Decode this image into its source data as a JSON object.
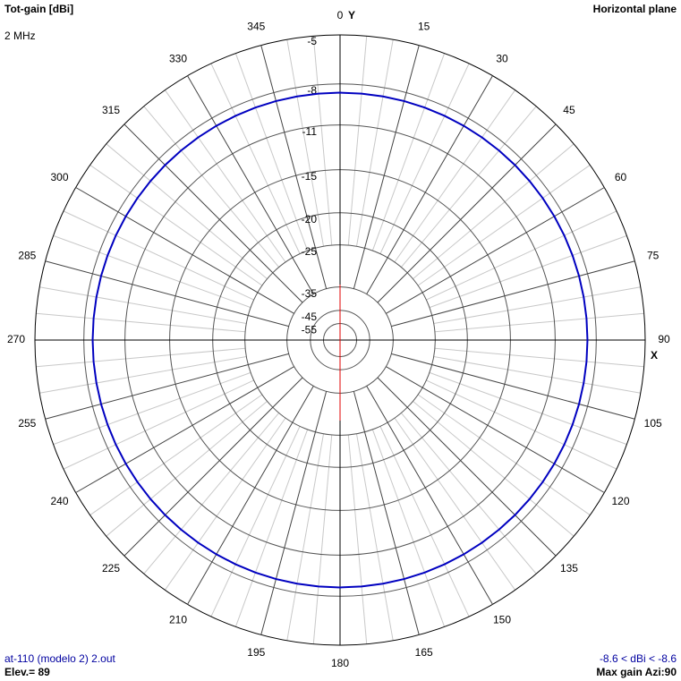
{
  "chart_data": {
    "type": "polar",
    "title": "Tot-gain [dBi]",
    "subtitle": "2 MHz",
    "plane": "Horizontal plane",
    "y_axis_label": "Y",
    "x_axis_label": "X",
    "file_label": "at-110 (modelo 2) 2.out",
    "elevation_label": "Elev.= 89",
    "range_label": "-8.6 < dBi < -8.6",
    "max_gain_label": "Max gain Azi:90",
    "radial_scale": "arrl-log",
    "rlim": [
      -55,
      -5
    ],
    "rticks": [
      -5,
      -8,
      -11,
      -15,
      -20,
      -25,
      -35,
      -45,
      -55
    ],
    "thetaticks": [
      0,
      15,
      30,
      45,
      60,
      75,
      90,
      105,
      120,
      135,
      150,
      165,
      180,
      195,
      210,
      225,
      240,
      255,
      270,
      285,
      300,
      315,
      330,
      345
    ],
    "theta_direction": "clockwise",
    "theta_zero": "top",
    "series": [
      {
        "color": "#0000c0",
        "x": [
          0,
          5,
          10,
          15,
          20,
          25,
          30,
          35,
          40,
          45,
          50,
          55,
          60,
          65,
          70,
          75,
          80,
          85,
          90,
          95,
          100,
          105,
          110,
          115,
          120,
          125,
          130,
          135,
          140,
          145,
          150,
          155,
          160,
          165,
          170,
          175,
          180,
          185,
          190,
          195,
          200,
          205,
          210,
          215,
          220,
          225,
          230,
          235,
          240,
          245,
          250,
          255,
          260,
          265,
          270,
          275,
          280,
          285,
          290,
          295,
          300,
          305,
          310,
          315,
          320,
          325,
          330,
          335,
          340,
          345,
          350,
          355,
          360
        ],
        "values": [
          -8.6,
          -8.6,
          -8.6,
          -8.6,
          -8.6,
          -8.6,
          -8.6,
          -8.6,
          -8.6,
          -8.6,
          -8.6,
          -8.6,
          -8.6,
          -8.6,
          -8.6,
          -8.6,
          -8.6,
          -8.6,
          -8.6,
          -8.6,
          -8.6,
          -8.6,
          -8.6,
          -8.6,
          -8.6,
          -8.6,
          -8.6,
          -8.6,
          -8.6,
          -8.6,
          -8.6,
          -8.6,
          -8.6,
          -8.6,
          -8.6,
          -8.6,
          -8.6,
          -8.6,
          -8.6,
          -8.6,
          -8.6,
          -8.6,
          -8.6,
          -8.6,
          -8.6,
          -8.6,
          -8.6,
          -8.6,
          -8.6,
          -8.6,
          -8.6,
          -8.6,
          -8.6,
          -8.6,
          -8.6,
          -8.6,
          -8.6,
          -8.6,
          -8.6,
          -8.6,
          -8.6,
          -8.6,
          -8.6,
          -8.6,
          -8.6,
          -8.6,
          -8.6,
          -8.6,
          -8.6,
          -8.6,
          -8.6,
          -8.6,
          -8.6
        ]
      }
    ]
  }
}
